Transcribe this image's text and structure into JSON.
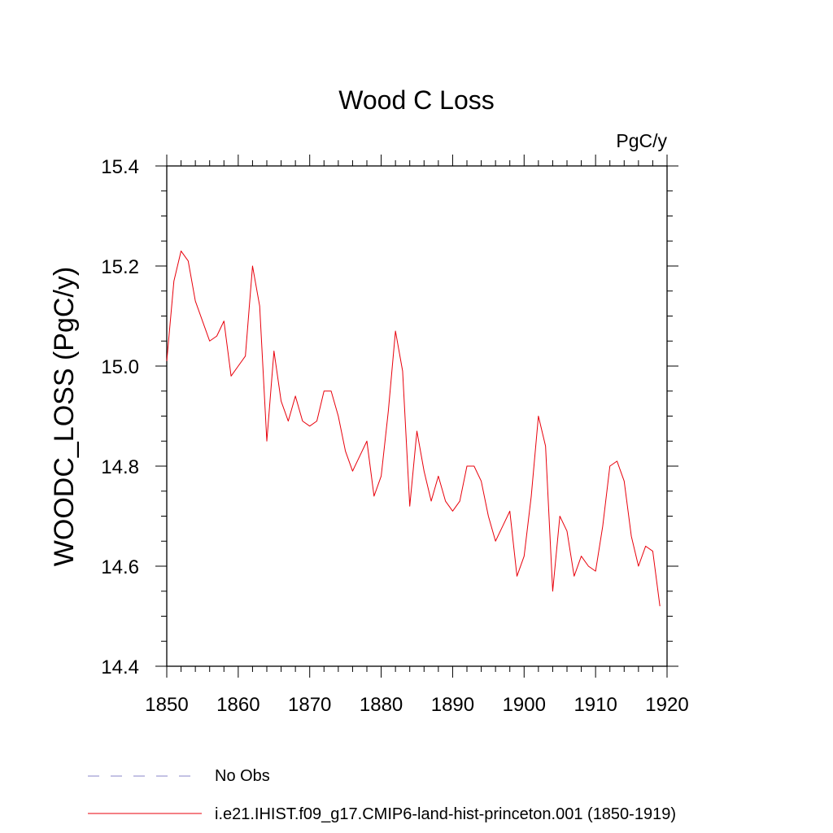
{
  "chart_data": {
    "type": "line",
    "title": "Wood C Loss",
    "units": "PgC/y",
    "ylabel": "WOODC_LOSS  (PgC/y)",
    "xlabel": "",
    "xlim": [
      1850,
      1920
    ],
    "ylim": [
      14.4,
      15.4
    ],
    "x_ticks": [
      1850,
      1860,
      1870,
      1880,
      1890,
      1900,
      1910,
      1920
    ],
    "x_tick_labels": [
      "1850",
      "1860",
      "1870",
      "1880",
      "1890",
      "1900",
      "1910",
      "1920"
    ],
    "y_ticks": [
      14.4,
      14.6,
      14.8,
      15.0,
      15.2,
      15.4
    ],
    "y_tick_labels": [
      "14.4",
      "14.6",
      "14.8",
      "15.0",
      "15.2",
      "15.4"
    ],
    "grid": false,
    "legend_position": "bottom",
    "legend": [
      {
        "label": "No Obs",
        "color": "#8a84c8",
        "style": "dashed"
      },
      {
        "label": "i.e21.IHIST.f09_g17.CMIP6-land-hist-princeton.001 (1850-1919)",
        "color": "#e8000b",
        "style": "solid"
      }
    ],
    "series": [
      {
        "name": "i.e21.IHIST.f09_g17.CMIP6-land-hist-princeton.001 (1850-1919)",
        "color": "#e8000b",
        "x": [
          1850,
          1851,
          1852,
          1853,
          1854,
          1855,
          1856,
          1857,
          1858,
          1859,
          1860,
          1861,
          1862,
          1863,
          1864,
          1865,
          1866,
          1867,
          1868,
          1869,
          1870,
          1871,
          1872,
          1873,
          1874,
          1875,
          1876,
          1877,
          1878,
          1879,
          1880,
          1881,
          1882,
          1883,
          1884,
          1885,
          1886,
          1887,
          1888,
          1889,
          1890,
          1891,
          1892,
          1893,
          1894,
          1895,
          1896,
          1897,
          1898,
          1899,
          1900,
          1901,
          1902,
          1903,
          1904,
          1905,
          1906,
          1907,
          1908,
          1909,
          1910,
          1911,
          1912,
          1913,
          1914,
          1915,
          1916,
          1917,
          1918,
          1919
        ],
        "values": [
          15.01,
          15.17,
          15.23,
          15.21,
          15.13,
          15.09,
          15.05,
          15.06,
          15.09,
          14.98,
          15.0,
          15.02,
          15.2,
          15.12,
          14.85,
          15.03,
          14.93,
          14.89,
          14.94,
          14.89,
          14.88,
          14.89,
          14.95,
          14.95,
          14.9,
          14.83,
          14.79,
          14.82,
          14.85,
          14.74,
          14.78,
          14.91,
          15.07,
          14.99,
          14.72,
          14.87,
          14.79,
          14.73,
          14.78,
          14.73,
          14.71,
          14.73,
          14.8,
          14.8,
          14.77,
          14.7,
          14.65,
          14.68,
          14.71,
          14.58,
          14.62,
          14.74,
          14.9,
          14.84,
          14.55,
          14.7,
          14.67,
          14.58,
          14.62,
          14.6,
          14.59,
          14.68,
          14.8,
          14.81,
          14.77,
          14.66,
          14.6,
          14.64,
          14.63,
          14.52
        ]
      }
    ]
  }
}
